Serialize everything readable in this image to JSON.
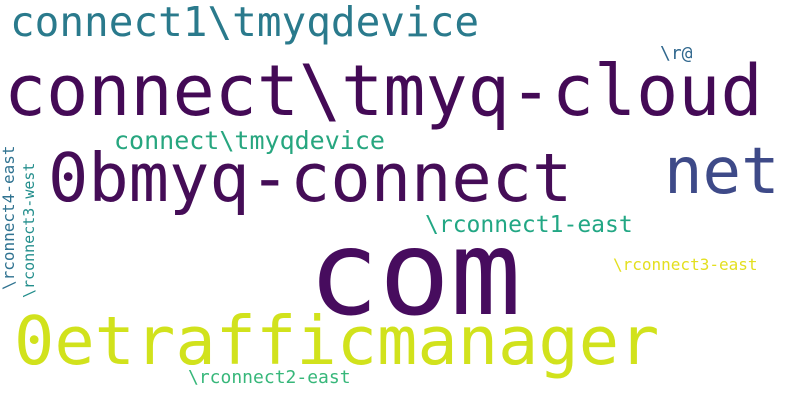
{
  "words": [
    {
      "key": "connect1_tmyqdevice",
      "text": "connect1\\tmyqdevice",
      "color": "#2a7a8c"
    },
    {
      "key": "connect_tmyq_cloud",
      "text": "connect\\tmyq-cloud",
      "color": "#440a56"
    },
    {
      "key": "r_at",
      "text": "\\r@",
      "color": "#31688e"
    },
    {
      "key": "connect_tmyqdevice",
      "text": "connect\\tmyqdevice",
      "color": "#27a67f"
    },
    {
      "key": "net",
      "text": "net",
      "color": "#3e4a88"
    },
    {
      "key": "obmyq_connect",
      "text": "0bmyq-connect",
      "color": "#450d57"
    },
    {
      "key": "rconnect1_east",
      "text": "\\rconnect1-east",
      "color": "#22a784"
    },
    {
      "key": "com",
      "text": "com",
      "color": "#470c5e"
    },
    {
      "key": "rconnect3_east",
      "text": "\\rconnect3-east",
      "color": "#e3df1f"
    },
    {
      "key": "oetrafficmanager",
      "text": "0etrafficmanager",
      "color": "#d1e21c"
    },
    {
      "key": "rconnect2_east",
      "text": "\\rconnect2-east",
      "color": "#37b77a"
    },
    {
      "key": "rconnect4_east",
      "text": "\\rconnect4-east",
      "color": "#2f7290"
    },
    {
      "key": "rconnect3_west",
      "text": "\\rconnect3-west",
      "color": "#238e8c"
    }
  ]
}
